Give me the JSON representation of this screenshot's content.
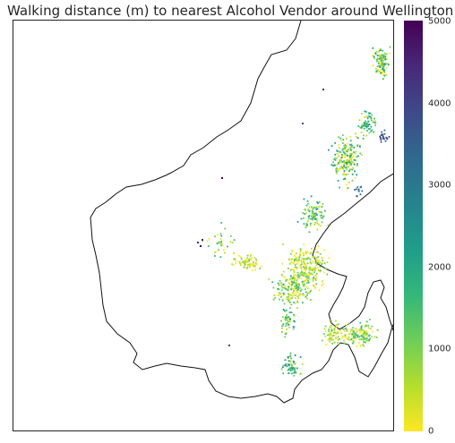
{
  "title": "Walking distance (m) to nearest Alcohol Vendor around Wellington",
  "colorbar": {
    "colormap": "viridis",
    "ticks": [
      "0",
      "1000",
      "2000",
      "3000",
      "4000",
      "5000"
    ],
    "min": 0,
    "max": 5000,
    "colors": [
      "#fde725",
      "#b5de2b",
      "#6ece58",
      "#35b779",
      "#1f9e89",
      "#26828e",
      "#31688e",
      "#3e4989",
      "#482878",
      "#440154"
    ]
  }
}
